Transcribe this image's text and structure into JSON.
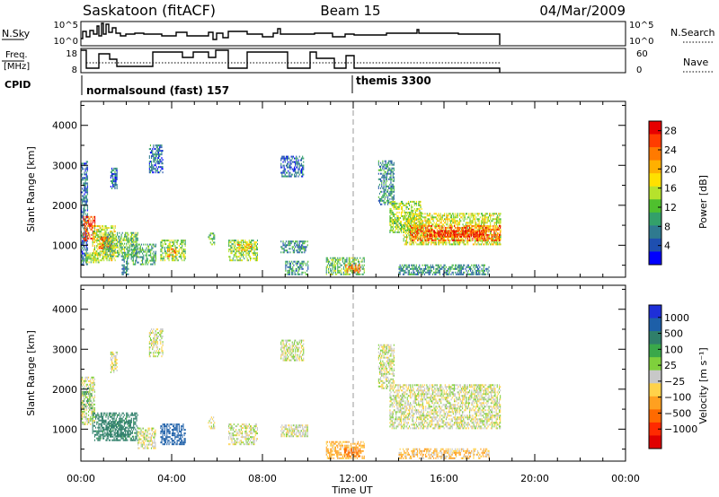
{
  "header": {
    "station": "Saskatoon (fitACF)",
    "beam": "Beam 15",
    "date": "04/Mar/2009"
  },
  "aux": {
    "nsky_label": "N.Sky",
    "nsky_ticks": [
      "10^5",
      "10^0"
    ],
    "nsearch_label": "N.Search",
    "freq_label_1": "Freq.",
    "freq_label_2": "[MHz]",
    "freq_ticks": [
      "18",
      "8"
    ],
    "nave_ticks": [
      "60",
      "0"
    ],
    "nave_label": "Nave",
    "cpid_label": "CPID",
    "cpid_1": "normalsound (fast) 157",
    "cpid_2": "themis 3300"
  },
  "colors": {
    "power": [
      "#0000ff",
      "#1e4fb0",
      "#2f7a8f",
      "#33a06a",
      "#4fc02e",
      "#b6e22c",
      "#ffe000",
      "#ffb000",
      "#ff7a00",
      "#ff3c00",
      "#e60000"
    ],
    "velocity": [
      "#1e2fd8",
      "#1d5fa8",
      "#2f7f6a",
      "#3aa84a",
      "#7fd03c",
      "#c8c8c8",
      "#c8c8c8",
      "#ffd24a",
      "#ffa020",
      "#ff6a00",
      "#ff2a00",
      "#e00000"
    ],
    "frame": "#000000",
    "dash": "#999999"
  },
  "chart_data": [
    {
      "type": "heatmap",
      "name": "power",
      "ylabel": "Slant Range [km]",
      "yticks": [
        "1000",
        "2000",
        "3000",
        "4000"
      ],
      "ylim": [
        200,
        4600
      ],
      "xlim": [
        0,
        24
      ],
      "colorbar_label": "Power [dB]",
      "colorbar_ticks": [
        "4",
        "8",
        "12",
        "16",
        "20",
        "24",
        "28"
      ],
      "clim": [
        0,
        30
      ],
      "patches": [
        {
          "t": [
            0.0,
            0.3
          ],
          "r": [
            500,
            3100
          ],
          "v": 6
        },
        {
          "t": [
            0.1,
            0.6
          ],
          "r": [
            1100,
            1700
          ],
          "v": 26
        },
        {
          "t": [
            0.2,
            0.8
          ],
          "r": [
            550,
            800
          ],
          "v": 14
        },
        {
          "t": [
            0.5,
            1.5
          ],
          "r": [
            600,
            1500
          ],
          "v": 16
        },
        {
          "t": [
            0.8,
            1.3
          ],
          "r": [
            900,
            1200
          ],
          "v": 24
        },
        {
          "t": [
            1.0,
            2.5
          ],
          "r": [
            700,
            1300
          ],
          "v": 12
        },
        {
          "t": [
            1.3,
            1.6
          ],
          "r": [
            2400,
            2900
          ],
          "v": 6
        },
        {
          "t": [
            1.8,
            2.1
          ],
          "r": [
            250,
            700
          ],
          "v": 8
        },
        {
          "t": [
            2.2,
            3.3
          ],
          "r": [
            500,
            1000
          ],
          "v": 10
        },
        {
          "t": [
            3.0,
            3.6
          ],
          "r": [
            2800,
            3500
          ],
          "v": 6
        },
        {
          "t": [
            3.5,
            4.6
          ],
          "r": [
            600,
            1100
          ],
          "v": 14
        },
        {
          "t": [
            3.8,
            4.2
          ],
          "r": [
            700,
            900
          ],
          "v": 22
        },
        {
          "t": [
            5.6,
            5.9
          ],
          "r": [
            1000,
            1300
          ],
          "v": 12
        },
        {
          "t": [
            6.5,
            7.8
          ],
          "r": [
            600,
            1100
          ],
          "v": 14
        },
        {
          "t": [
            6.9,
            7.5
          ],
          "r": [
            850,
            1000
          ],
          "v": 20
        },
        {
          "t": [
            8.8,
            10.0
          ],
          "r": [
            800,
            1100
          ],
          "v": 8
        },
        {
          "t": [
            8.8,
            9.8
          ],
          "r": [
            2700,
            3200
          ],
          "v": 6
        },
        {
          "t": [
            9.0,
            10.0
          ],
          "r": [
            250,
            600
          ],
          "v": 8
        },
        {
          "t": [
            10.8,
            12.5
          ],
          "r": [
            250,
            700
          ],
          "v": 12
        },
        {
          "t": [
            11.6,
            12.3
          ],
          "r": [
            300,
            500
          ],
          "v": 22
        },
        {
          "t": [
            13.1,
            13.8
          ],
          "r": [
            2000,
            3100
          ],
          "v": 8
        },
        {
          "t": [
            13.6,
            15.0
          ],
          "r": [
            1300,
            2100
          ],
          "v": 14
        },
        {
          "t": [
            14.2,
            18.5
          ],
          "r": [
            1000,
            1800
          ],
          "v": 16
        },
        {
          "t": [
            14.5,
            18.5
          ],
          "r": [
            1100,
            1500
          ],
          "v": 24
        },
        {
          "t": [
            15.2,
            17.8
          ],
          "r": [
            1200,
            1350
          ],
          "v": 28
        },
        {
          "t": [
            14.0,
            18.0
          ],
          "r": [
            250,
            500
          ],
          "v": 8
        }
      ]
    },
    {
      "type": "heatmap",
      "name": "velocity",
      "ylabel": "Slant Range [km]",
      "yticks": [
        "1000",
        "2000",
        "3000",
        "4000"
      ],
      "ylim": [
        200,
        4600
      ],
      "xlabel": "Time UT",
      "xticks": [
        "00:00",
        "04:00",
        "08:00",
        "12:00",
        "16:00",
        "20:00",
        "00:00"
      ],
      "xlim": [
        0,
        24
      ],
      "colorbar_label": "Velocity [m s⁻¹]",
      "colorbar_ticks": [
        "1000",
        "500",
        "100",
        "25",
        "−25",
        "−100",
        "−500",
        "−1000"
      ],
      "clim": [
        -1200,
        1200
      ],
      "patches": [
        {
          "t": [
            0.0,
            0.6
          ],
          "r": [
            1100,
            2300
          ],
          "v": 0
        },
        {
          "t": [
            0.1,
            0.5
          ],
          "r": [
            1500,
            2000
          ],
          "v": 60
        },
        {
          "t": [
            0.5,
            2.5
          ],
          "r": [
            700,
            1400
          ],
          "v": 150
        },
        {
          "t": [
            1.0,
            2.2
          ],
          "r": [
            800,
            1200
          ],
          "v": 200
        },
        {
          "t": [
            1.3,
            1.6
          ],
          "r": [
            2400,
            2900
          ],
          "v": 0
        },
        {
          "t": [
            2.5,
            3.3
          ],
          "r": [
            500,
            1000
          ],
          "v": 0
        },
        {
          "t": [
            3.0,
            3.6
          ],
          "r": [
            2800,
            3500
          ],
          "v": 0
        },
        {
          "t": [
            3.5,
            4.6
          ],
          "r": [
            600,
            1100
          ],
          "v": 600
        },
        {
          "t": [
            5.6,
            5.9
          ],
          "r": [
            1000,
            1300
          ],
          "v": 0
        },
        {
          "t": [
            6.5,
            7.8
          ],
          "r": [
            600,
            1100
          ],
          "v": 0
        },
        {
          "t": [
            8.8,
            10.0
          ],
          "r": [
            800,
            1100
          ],
          "v": 0
        },
        {
          "t": [
            8.8,
            9.8
          ],
          "r": [
            2700,
            3200
          ],
          "v": 0
        },
        {
          "t": [
            10.8,
            12.5
          ],
          "r": [
            250,
            700
          ],
          "v": -80
        },
        {
          "t": [
            11.6,
            12.3
          ],
          "r": [
            300,
            500
          ],
          "v": -300
        },
        {
          "t": [
            13.1,
            13.8
          ],
          "r": [
            2000,
            3100
          ],
          "v": 0
        },
        {
          "t": [
            13.6,
            18.5
          ],
          "r": [
            1000,
            2100
          ],
          "v": 0
        },
        {
          "t": [
            14.0,
            18.0
          ],
          "r": [
            250,
            500
          ],
          "v": -60
        }
      ]
    }
  ]
}
